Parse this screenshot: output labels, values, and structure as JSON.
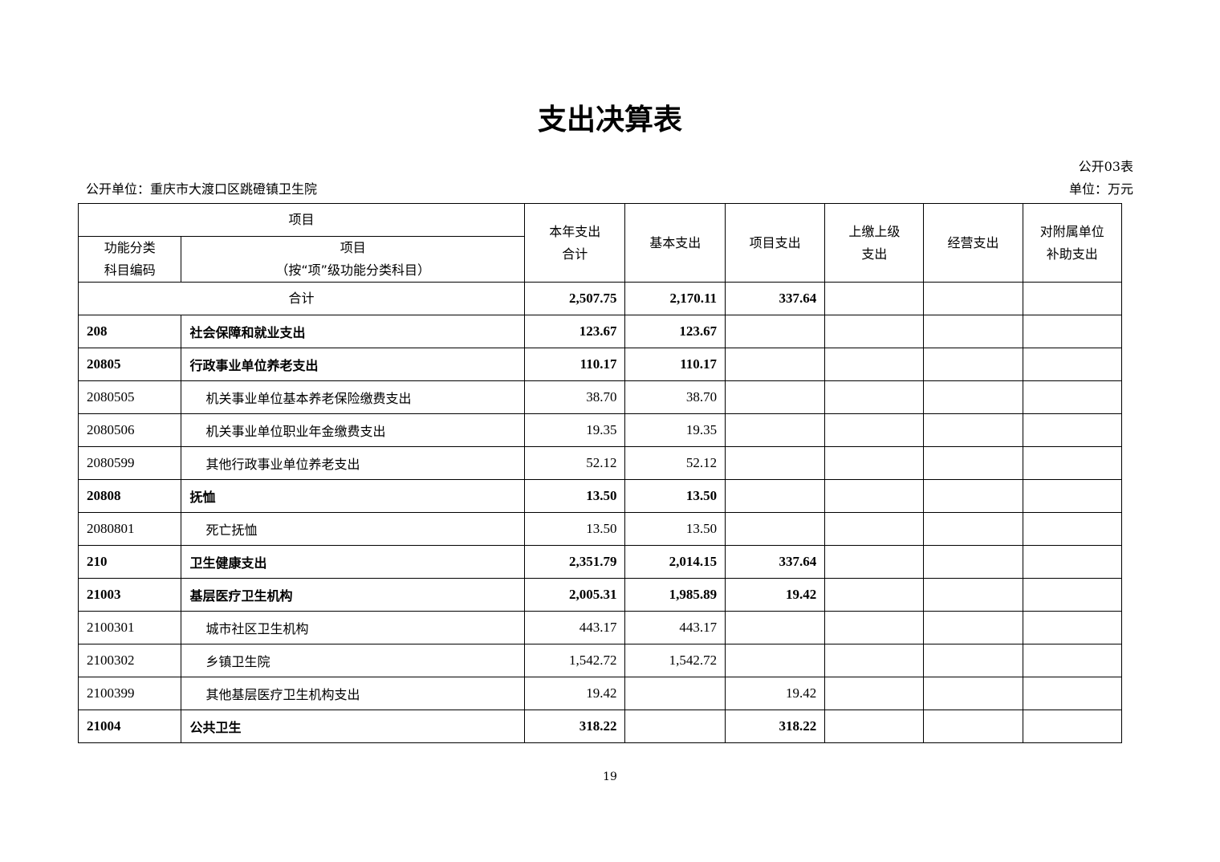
{
  "title": "支出决算表",
  "table_no": "公开03表",
  "unit_org": "公开单位：重庆市大渡口区跳磴镇卫生院",
  "unit_currency": "单位：万元",
  "headers": {
    "item": "项目",
    "code": "功能分类\n科目编码",
    "name": "项目\n（按“项”级功能分类科目）",
    "total": "本年支出\n合计",
    "basic": "基本支出",
    "project": "项目支出",
    "upper": "上缴上级\n支出",
    "business": "经营支出",
    "subsidy": "对附属单位\n补助支出"
  },
  "total_row": {
    "label": "合计",
    "total": "2,507.75",
    "basic": "2,170.11",
    "project": "337.64",
    "upper": "",
    "business": "",
    "subsidy": ""
  },
  "rows": [
    {
      "code": "208",
      "name": "社会保障和就业支出",
      "total": "123.67",
      "basic": "123.67",
      "project": "",
      "bold": true
    },
    {
      "code": "20805",
      "name": "行政事业单位养老支出",
      "total": "110.17",
      "basic": "110.17",
      "project": "",
      "bold": true
    },
    {
      "code": "2080505",
      "name": "机关事业单位基本养老保险缴费支出",
      "total": "38.70",
      "basic": "38.70",
      "project": "",
      "bold": false
    },
    {
      "code": "2080506",
      "name": "机关事业单位职业年金缴费支出",
      "total": "19.35",
      "basic": "19.35",
      "project": "",
      "bold": false
    },
    {
      "code": "2080599",
      "name": "其他行政事业单位养老支出",
      "total": "52.12",
      "basic": "52.12",
      "project": "",
      "bold": false
    },
    {
      "code": "20808",
      "name": "抚恤",
      "total": "13.50",
      "basic": "13.50",
      "project": "",
      "bold": true
    },
    {
      "code": "2080801",
      "name": "死亡抚恤",
      "total": "13.50",
      "basic": "13.50",
      "project": "",
      "bold": false
    },
    {
      "code": "210",
      "name": "卫生健康支出",
      "total": "2,351.79",
      "basic": "2,014.15",
      "project": "337.64",
      "bold": true
    },
    {
      "code": "21003",
      "name": "基层医疗卫生机构",
      "total": "2,005.31",
      "basic": "1,985.89",
      "project": "19.42",
      "bold": true
    },
    {
      "code": "2100301",
      "name": "城市社区卫生机构",
      "total": "443.17",
      "basic": "443.17",
      "project": "",
      "bold": false
    },
    {
      "code": "2100302",
      "name": "乡镇卫生院",
      "total": "1,542.72",
      "basic": "1,542.72",
      "project": "",
      "bold": false
    },
    {
      "code": "2100399",
      "name": "其他基层医疗卫生机构支出",
      "total": "19.42",
      "basic": "",
      "project": "19.42",
      "bold": false
    },
    {
      "code": "21004",
      "name": "公共卫生",
      "total": "318.22",
      "basic": "",
      "project": "318.22",
      "bold": true
    }
  ],
  "page_number": "19"
}
